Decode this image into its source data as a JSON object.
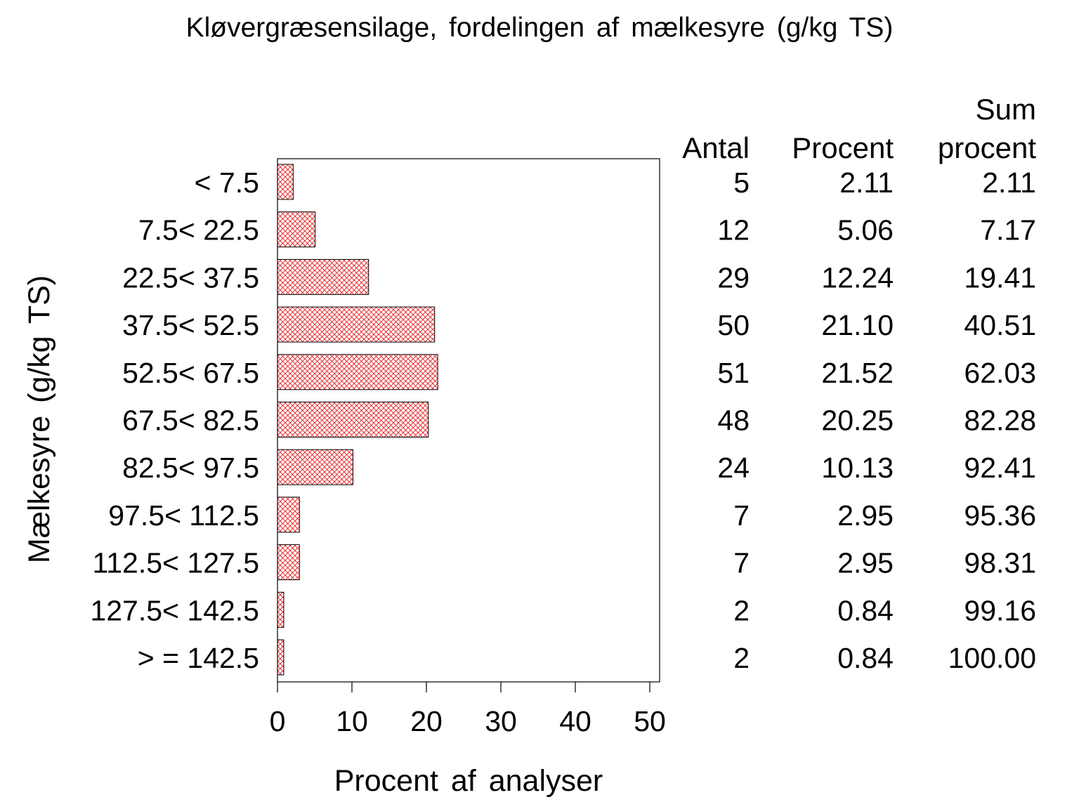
{
  "chart_data": {
    "type": "bar",
    "orientation": "horizontal",
    "title": "Kløvergræsensilage, fordelingen af mælkesyre (g/kg TS)",
    "xlabel": "Procent af analyser",
    "ylabel": "Mælkesyre (g/kg TS)",
    "xlim": [
      0,
      50
    ],
    "xticks": [
      "0",
      "10",
      "20",
      "30",
      "40",
      "50"
    ],
    "categories": [
      "< 7.5",
      "7.5< 22.5",
      "22.5< 37.5",
      "37.5< 52.5",
      "52.5< 67.5",
      "67.5< 82.5",
      "82.5< 97.5",
      "97.5< 112.5",
      "112.5< 127.5",
      "127.5< 142.5",
      "> = 142.5"
    ],
    "values": [
      2.11,
      5.06,
      12.24,
      21.1,
      21.52,
      20.25,
      10.13,
      2.95,
      2.95,
      0.84,
      0.84
    ],
    "bar_fill": "crosshatch",
    "bar_color": "#e41a1c",
    "grid": false,
    "table": {
      "sum_header": "Sum",
      "headers": [
        "Antal",
        "Procent",
        "procent"
      ],
      "rows": [
        [
          "5",
          "2.11",
          "2.11"
        ],
        [
          "12",
          "5.06",
          "7.17"
        ],
        [
          "29",
          "12.24",
          "19.41"
        ],
        [
          "50",
          "21.10",
          "40.51"
        ],
        [
          "51",
          "21.52",
          "62.03"
        ],
        [
          "48",
          "20.25",
          "82.28"
        ],
        [
          "24",
          "10.13",
          "92.41"
        ],
        [
          "7",
          "2.95",
          "95.36"
        ],
        [
          "7",
          "2.95",
          "98.31"
        ],
        [
          "2",
          "0.84",
          "99.16"
        ],
        [
          "2",
          "0.84",
          "100.00"
        ]
      ]
    }
  }
}
